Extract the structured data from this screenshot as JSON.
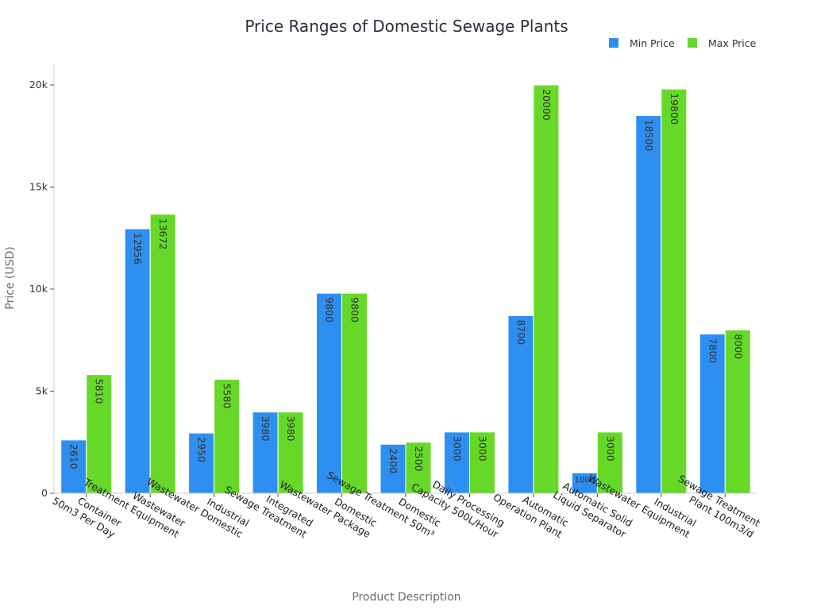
{
  "chart_data": {
    "type": "bar",
    "title": "Price Ranges of Domestic Sewage Plants",
    "xlabel": "Product Description",
    "ylabel": "Price (USD)",
    "ylim": [
      0,
      21000
    ],
    "yticks": [
      0,
      5000,
      10000,
      15000,
      20000
    ],
    "ytick_labels": [
      "0",
      "5k",
      "10k",
      "15k",
      "20k"
    ],
    "legend_position": "top-right",
    "grid": false,
    "categories": [
      [
        "Container",
        "50m3 Per Day"
      ],
      [
        "Wastewater",
        "Treatment Equipment"
      ],
      [
        "Industrial",
        "Wastewater Domestic"
      ],
      [
        "Integrated",
        "Sewage Treatment"
      ],
      [
        "Domestic",
        "Wastewater Package"
      ],
      [
        "Domestic",
        "Sewage Treatment 50m³"
      ],
      [
        "Daily Processing",
        "Capacity 500L/Hour"
      ],
      [
        "Automatic",
        "Operation Plant"
      ],
      [
        "Automatic Solid",
        "Liquid Separator"
      ],
      [
        "Industrial",
        "Wastewater Equipment"
      ],
      [
        "Sewage Treatment",
        "Plant 100m3/d"
      ]
    ],
    "series": [
      {
        "name": "Min Price",
        "color": "#2e8ff2",
        "values": [
          2610,
          12956,
          2950,
          3980,
          9800,
          2400,
          3000,
          8700,
          1000,
          18500,
          7800
        ]
      },
      {
        "name": "Max Price",
        "color": "#66d928",
        "values": [
          5810,
          13672,
          5580,
          3980,
          9800,
          2500,
          3000,
          20000,
          3000,
          19800,
          8000
        ]
      }
    ]
  }
}
